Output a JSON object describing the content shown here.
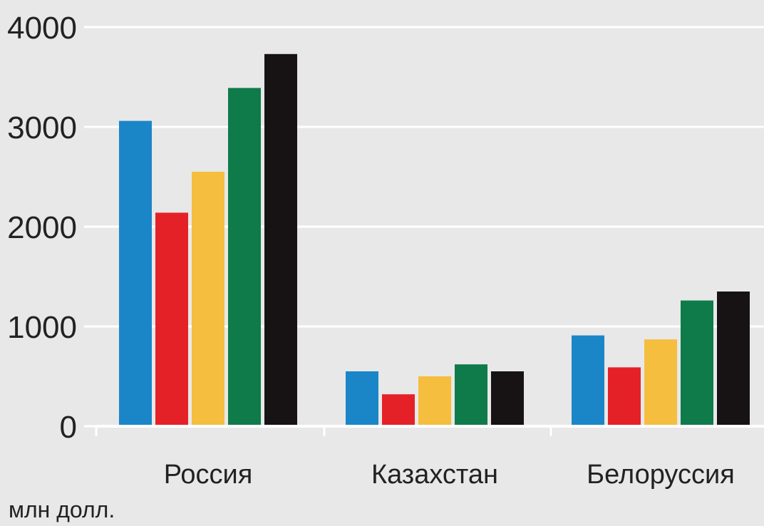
{
  "chart_data": {
    "type": "bar",
    "categories": [
      "Россия",
      "Казахстан",
      "Белоруссия"
    ],
    "series": [
      {
        "color": "#1a86c8",
        "values": [
          3060,
          550,
          910
        ]
      },
      {
        "color": "#e52128",
        "values": [
          2140,
          320,
          590
        ]
      },
      {
        "color": "#f6be3e",
        "values": [
          2550,
          500,
          870
        ]
      },
      {
        "color": "#0f7a4a",
        "values": [
          3390,
          620,
          1260
        ]
      },
      {
        "color": "#171314",
        "values": [
          3730,
          550,
          1350
        ]
      }
    ],
    "y_ticks": [
      "0",
      "1000",
      "2000",
      "3000",
      "4000"
    ],
    "ylim": [
      0,
      4000
    ],
    "grid": true,
    "unit_label": "млн долл.",
    "colors": {
      "background": "#e8e8e8",
      "grid": "#ffffff",
      "text": "#222222"
    }
  }
}
